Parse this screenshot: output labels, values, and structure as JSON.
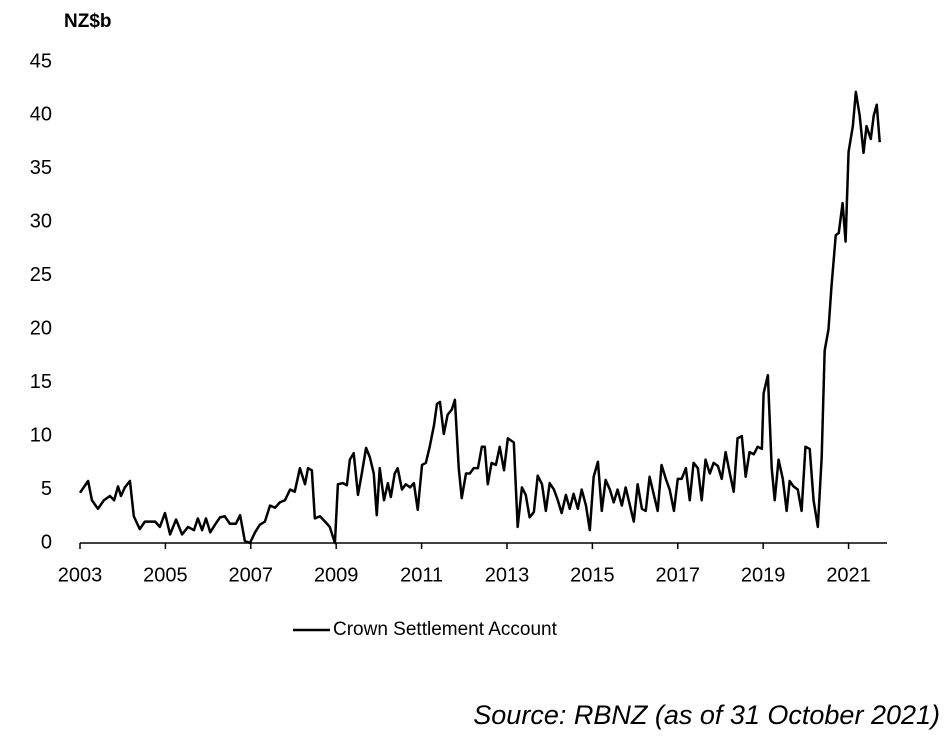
{
  "chart_data": {
    "type": "line",
    "y_label": "NZ$b",
    "source": "Source: RBNZ (as of 31 October 2021)",
    "xlim": [
      2003,
      2021.9
    ],
    "xticks": [
      2003,
      2005,
      2007,
      2009,
      2011,
      2013,
      2015,
      2017,
      2019,
      2021
    ],
    "ylim": [
      0,
      45
    ],
    "yticks": [
      0,
      5,
      10,
      15,
      20,
      25,
      30,
      35,
      40,
      45
    ],
    "grid": false,
    "legend": "bottom",
    "x": [
      2003.0,
      2003.19,
      2003.28,
      2003.42,
      2003.56,
      2003.7,
      2003.8,
      2003.89,
      2003.96,
      2004.05,
      2004.17,
      2004.26,
      2004.4,
      2004.52,
      2004.64,
      2004.76,
      2004.87,
      2004.99,
      2005.11,
      2005.25,
      2005.39,
      2005.53,
      2005.67,
      2005.76,
      2005.86,
      2005.95,
      2006.05,
      2006.16,
      2006.28,
      2006.39,
      2006.51,
      2006.65,
      2006.75,
      2006.86,
      2006.98,
      2007.1,
      2007.21,
      2007.33,
      2007.45,
      2007.57,
      2007.68,
      2007.8,
      2007.92,
      2008.03,
      2008.15,
      2008.27,
      2008.34,
      2008.43,
      2008.5,
      2008.62,
      2008.74,
      2008.85,
      2008.97,
      2009.04,
      2009.16,
      2009.25,
      2009.32,
      2009.41,
      2009.51,
      2009.6,
      2009.7,
      2009.79,
      2009.88,
      2009.95,
      2010.02,
      2010.12,
      2010.21,
      2010.28,
      2010.37,
      2010.44,
      2010.54,
      2010.63,
      2010.73,
      2010.82,
      2010.91,
      2011.01,
      2011.1,
      2011.19,
      2011.29,
      2011.36,
      2011.43,
      2011.52,
      2011.61,
      2011.71,
      2011.78,
      2011.87,
      2011.94,
      2012.04,
      2012.13,
      2012.22,
      2012.32,
      2012.41,
      2012.48,
      2012.55,
      2012.64,
      2012.74,
      2012.83,
      2012.93,
      2013.02,
      2013.16,
      2013.25,
      2013.35,
      2013.44,
      2013.53,
      2013.63,
      2013.72,
      2013.82,
      2013.91,
      2014.0,
      2014.1,
      2014.19,
      2014.28,
      2014.38,
      2014.47,
      2014.56,
      2014.66,
      2014.75,
      2014.85,
      2014.94,
      2015.03,
      2015.13,
      2015.22,
      2015.31,
      2015.41,
      2015.5,
      2015.59,
      2015.69,
      2015.78,
      2015.88,
      2015.97,
      2016.06,
      2016.16,
      2016.25,
      2016.34,
      2016.44,
      2016.53,
      2016.62,
      2016.72,
      2016.81,
      2016.91,
      2017.0,
      2017.09,
      2017.19,
      2017.28,
      2017.37,
      2017.47,
      2017.56,
      2017.65,
      2017.75,
      2017.84,
      2017.94,
      2018.03,
      2018.12,
      2018.22,
      2018.31,
      2018.4,
      2018.5,
      2018.59,
      2018.68,
      2018.78,
      2018.87,
      2018.97,
      2019.01,
      2019.11,
      2019.2,
      2019.27,
      2019.36,
      2019.46,
      2019.55,
      2019.62,
      2019.71,
      2019.81,
      2019.9,
      2019.99,
      2020.09,
      2020.18,
      2020.28,
      2020.37,
      2020.44,
      2020.53,
      2020.6,
      2020.7,
      2020.77,
      2020.86,
      2020.93,
      2021.0,
      2021.1,
      2021.17,
      2021.26,
      2021.35,
      2021.42,
      2021.52,
      2021.59,
      2021.66,
      2021.73
    ],
    "series": [
      {
        "name": "Crown Settlement Account",
        "color": "#000000",
        "values": [
          4.7,
          5.8,
          4,
          3.2,
          4,
          4.4,
          4,
          5.3,
          4.4,
          5.2,
          5.8,
          2.5,
          1.3,
          2,
          2,
          2,
          1.5,
          2.8,
          0.8,
          2.2,
          0.8,
          1.5,
          1.2,
          2.3,
          1.2,
          2.3,
          1,
          1.7,
          2.4,
          2.5,
          1.8,
          1.8,
          2.6,
          0.2,
          0,
          1,
          1.7,
          2,
          3.5,
          3.3,
          3.8,
          4,
          5,
          4.8,
          7,
          5.5,
          7,
          6.8,
          2.3,
          2.5,
          2,
          1.5,
          0,
          5.5,
          5.6,
          5.4,
          7.8,
          8.4,
          4.5,
          6.5,
          8.9,
          8,
          6.5,
          2.6,
          7,
          4,
          5.6,
          4.3,
          6.5,
          7,
          5,
          5.5,
          5.2,
          5.6,
          3.1,
          7.3,
          7.5,
          9,
          11,
          13,
          13.2,
          10.2,
          12,
          12.5,
          13.4,
          7,
          4.2,
          6.5,
          6.5,
          7,
          7,
          9,
          9,
          5.5,
          7.5,
          7.3,
          9,
          6.8,
          9.8,
          9.4,
          1.5,
          5.2,
          4.5,
          2.4,
          2.9,
          6.3,
          5.5,
          3,
          5.6,
          5,
          4,
          2.8,
          4.5,
          3.2,
          4.6,
          3.2,
          5,
          3.5,
          1.2,
          6.2,
          7.6,
          3,
          5.9,
          5,
          3.8,
          5,
          3.5,
          5.2,
          3.5,
          2,
          5.5,
          3.2,
          3,
          6.2,
          4.5,
          3,
          7.3,
          6,
          5,
          3,
          6,
          6,
          7,
          4,
          7.5,
          7,
          4,
          7.8,
          6.5,
          7.5,
          7.2,
          6,
          8.5,
          6.5,
          4.8,
          9.8,
          10,
          6.2,
          8.5,
          8.3,
          9,
          8.8,
          14,
          15.7,
          7,
          4,
          7.8,
          6,
          3,
          5.8,
          5.3,
          5,
          3,
          9,
          8.8,
          4,
          1.5,
          8,
          18,
          20,
          24,
          28.8,
          29,
          31.8,
          28.2,
          36.6,
          39,
          42.2,
          40,
          36.5,
          39,
          37.8,
          40,
          41,
          37.5
        ]
      }
    ]
  }
}
